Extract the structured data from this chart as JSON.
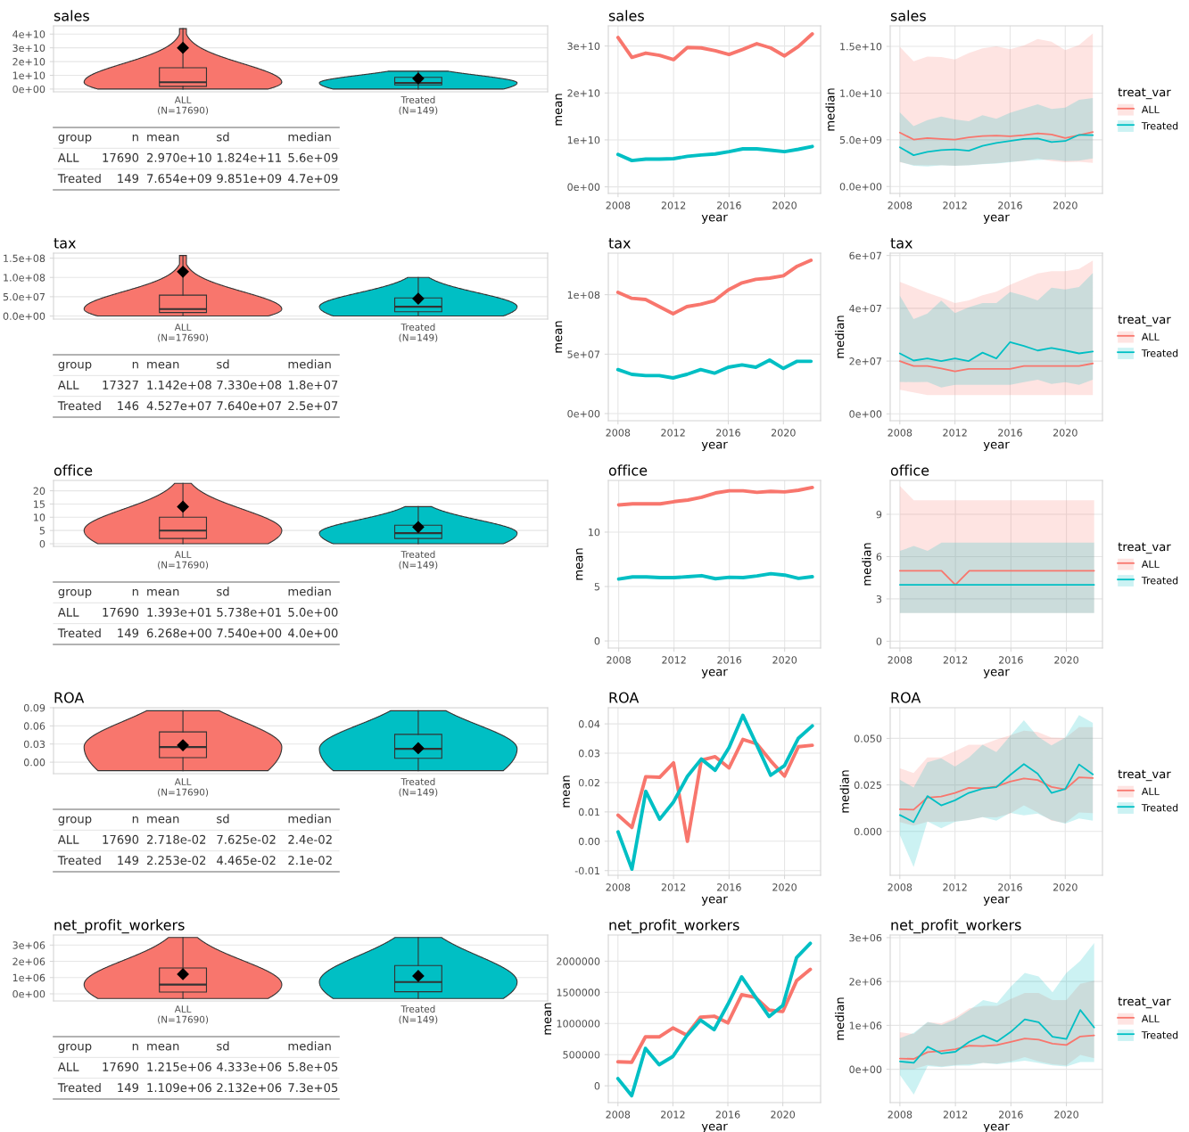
{
  "chart_data": [
    {
      "type": "box",
      "title": "sales",
      "categories": [
        "ALL\n(N=17690)",
        "Treated\n(N=149)"
      ],
      "colors": [
        "#f8766d",
        "#00bfc4"
      ],
      "marker": "diamond",
      "grid": "y",
      "boxes": [
        {
          "low": 0,
          "q1": 2000000000.0,
          "median": 5000000000.0,
          "q3": 15500000000.0,
          "high": 44000000000.0,
          "mean": 30000000000.0
        },
        {
          "low": 0,
          "q1": 3000000000.0,
          "median": 4500000000.0,
          "q3": 8500000000.0,
          "high": 13000000000.0,
          "mean": 7700000000.0
        }
      ],
      "ylim": [
        -2000000000.0,
        46000000000.0
      ],
      "yticks": [
        {
          "value": 0,
          "label": "0e+00"
        },
        {
          "value": 10000000000.0,
          "label": "1e+10"
        },
        {
          "value": 20000000000.0,
          "label": "2e+10"
        },
        {
          "value": 30000000000.0,
          "label": "3e+10"
        },
        {
          "value": 40000000000.0,
          "label": "4e+10"
        }
      ]
    },
    {
      "type": "other",
      "annotations": [
        "group",
        "n",
        "mean",
        "sd",
        "median",
        "ALL",
        "17690",
        "2.970e+10",
        "1.824e+11",
        "5.6e+09",
        "Treated",
        "149",
        "7.654e+09",
        "9.851e+09",
        "4.7e+09"
      ]
    },
    {
      "type": "line",
      "title": "sales",
      "xlabel": "year",
      "ylabel": "mean",
      "grid": true,
      "x": [
        2008,
        2009,
        2010,
        2011,
        2012,
        2013,
        2014,
        2015,
        2016,
        2017,
        2018,
        2019,
        2020,
        2021,
        2022
      ],
      "series": [
        {
          "color": "#f8766d",
          "values": [
            31800000000.0,
            27600000000.0,
            28500000000.0,
            28000000000.0,
            27100000000.0,
            29700000000.0,
            29600000000.0,
            29000000000.0,
            28200000000.0,
            29300000000.0,
            30500000000.0,
            29600000000.0,
            27900000000.0,
            29900000000.0,
            32600000000.0
          ]
        },
        {
          "color": "#00bfc4",
          "values": [
            6900000000.0,
            5600000000.0,
            5900000000.0,
            5900000000.0,
            6000000000.0,
            6500000000.0,
            6800000000.0,
            7000000000.0,
            7500000000.0,
            8100000000.0,
            8100000000.0,
            7800000000.0,
            7500000000.0,
            8000000000.0,
            8600000000.0
          ]
        }
      ],
      "xlim": [
        2007.3,
        2022.6
      ],
      "ylim": [
        -1400000000.0,
        34300000000.0
      ],
      "xticks": [
        2008,
        2012,
        2016,
        2020
      ],
      "yticks": [
        {
          "value": 0,
          "label": "0e+00"
        },
        {
          "value": 10000000000.0,
          "label": "1e+10"
        },
        {
          "value": 20000000000.0,
          "label": "2e+10"
        },
        {
          "value": 30000000000.0,
          "label": "3e+10"
        }
      ]
    },
    {
      "type": "line",
      "title": "sales",
      "xlabel": "year",
      "ylabel": "median",
      "grid": true,
      "legend": "right",
      "legend_title": "treat_var",
      "x": [
        2008,
        2009,
        2010,
        2011,
        2012,
        2013,
        2014,
        2015,
        2016,
        2017,
        2018,
        2019,
        2020,
        2021,
        2022
      ],
      "series": [
        {
          "name": "ALL",
          "color": "#f8766d",
          "values": [
            5770000000.0,
            5030000000.0,
            5180000000.0,
            5100000000.0,
            5030000000.0,
            5260000000.0,
            5410000000.0,
            5450000000.0,
            5380000000.0,
            5490000000.0,
            5690000000.0,
            5570000000.0,
            5180000000.0,
            5490000000.0,
            5840000000.0
          ],
          "lower": [
            2600000000.0,
            2300000000.0,
            2260000000.0,
            2300000000.0,
            2220000000.0,
            2300000000.0,
            2400000000.0,
            2500000000.0,
            2650000000.0,
            2730000000.0,
            3000000000.0,
            2730000000.0,
            2600000000.0,
            2650000000.0,
            2530000000.0
          ],
          "upper": [
            14960000000.0,
            13400000000.0,
            13900000000.0,
            13870000000.0,
            13600000000.0,
            14300000000.0,
            14800000000.0,
            15000000000.0,
            14700000000.0,
            15100000000.0,
            15800000000.0,
            15500000000.0,
            14600000000.0,
            15150000000.0,
            16400000000.0
          ]
        },
        {
          "name": "Treated",
          "color": "#00bfc4",
          "values": [
            4200000000.0,
            3350000000.0,
            3700000000.0,
            3900000000.0,
            3970000000.0,
            3820000000.0,
            4360000000.0,
            4670000000.0,
            4870000000.0,
            5100000000.0,
            5140000000.0,
            4750000000.0,
            4870000000.0,
            5530000000.0,
            5490000000.0
          ],
          "lower": [
            2650000000.0,
            2220000000.0,
            2140000000.0,
            2260000000.0,
            2220000000.0,
            2260000000.0,
            2380000000.0,
            2450000000.0,
            2600000000.0,
            2770000000.0,
            2840000000.0,
            2880000000.0,
            2730000000.0,
            2770000000.0,
            3000000000.0
          ],
          "upper": [
            7950000000.0,
            6470000000.0,
            7100000000.0,
            7480000000.0,
            7170000000.0,
            7000000000.0,
            7630000000.0,
            7250000000.0,
            7900000000.0,
            8340000000.0,
            8800000000.0,
            8300000000.0,
            8450000000.0,
            9270000000.0,
            9470000000.0
          ]
        }
      ],
      "xlim": [
        2007.3,
        2022.7
      ],
      "ylim": [
        -740000000.0,
        17200000000.0
      ],
      "xticks": [
        2008,
        2012,
        2016,
        2020
      ],
      "yticks": [
        {
          "value": 0,
          "label": "0.0e+00"
        },
        {
          "value": 5000000000.0,
          "label": "5.0e+09"
        },
        {
          "value": 10000000000.0,
          "label": "1.0e+10"
        },
        {
          "value": 15000000000.0,
          "label": "1.5e+10"
        }
      ]
    },
    {
      "type": "box",
      "title": "tax",
      "categories": [
        "ALL\n(N=17690)",
        "Treated\n(N=149)"
      ],
      "colors": [
        "#f8766d",
        "#00bfc4"
      ],
      "marker": "diamond",
      "grid": "y",
      "boxes": [
        {
          "low": 0,
          "q1": 9000000.0,
          "median": 18000000.0,
          "q3": 54000000.0,
          "high": 157000000.0,
          "mean": 115000000.0
        },
        {
          "low": 0,
          "q1": 11000000.0,
          "median": 24000000.0,
          "q3": 47000000.0,
          "high": 100000000.0,
          "mean": 45000000.0
        }
      ],
      "ylim": [
        -8000000.0,
        163000000.0
      ],
      "yticks": [
        {
          "value": 0,
          "label": "0.0e+00"
        },
        {
          "value": 50000000.0,
          "label": "5.0e+07"
        },
        {
          "value": 100000000.0,
          "label": "1.0e+08"
        },
        {
          "value": 150000000.0,
          "label": "1.5e+08"
        }
      ]
    },
    {
      "type": "other",
      "annotations": [
        "group",
        "n",
        "mean",
        "sd",
        "median",
        "ALL",
        "17327",
        "1.142e+08",
        "7.330e+08",
        "1.8e+07",
        "Treated",
        "146",
        "4.527e+07",
        "7.640e+07",
        "2.5e+07"
      ]
    },
    {
      "type": "line",
      "title": "tax",
      "xlabel": "year",
      "ylabel": "mean",
      "grid": true,
      "x": [
        2008,
        2009,
        2010,
        2011,
        2012,
        2013,
        2014,
        2015,
        2016,
        2017,
        2018,
        2019,
        2020,
        2021,
        2022
      ],
      "series": [
        {
          "color": "#f8766d",
          "values": [
            102000000.0,
            97000000.0,
            96000000.0,
            90000000.0,
            84000000.0,
            90000000.0,
            92000000.0,
            95000000.0,
            104000000.0,
            110000000.0,
            113000000.0,
            114000000.0,
            116000000.0,
            124000000.0,
            129000000.0
          ]
        },
        {
          "color": "#00bfc4",
          "values": [
            37000000.0,
            33000000.0,
            32000000.0,
            32000000.0,
            30000000.0,
            33000000.0,
            37000000.0,
            34000000.0,
            39000000.0,
            41000000.0,
            39000000.0,
            45000000.0,
            38000000.0,
            44000000.0,
            44000000.0
          ]
        }
      ],
      "xlim": [
        2007.3,
        2022.7
      ],
      "ylim": [
        -6000000.0,
        135000000.0
      ],
      "xticks": [
        2008,
        2012,
        2016,
        2020
      ],
      "yticks": [
        {
          "value": 0,
          "label": "0e+00"
        },
        {
          "value": 50000000.0,
          "label": "5e+07"
        },
        {
          "value": 100000000.0,
          "label": "1e+08"
        }
      ]
    },
    {
      "type": "line",
      "title": "tax",
      "xlabel": "year",
      "ylabel": "median",
      "grid": true,
      "legend": "right",
      "legend_title": "treat_var",
      "x": [
        2008,
        2009,
        2010,
        2011,
        2012,
        2013,
        2014,
        2015,
        2016,
        2017,
        2018,
        2019,
        2020,
        2021,
        2022
      ],
      "series": [
        {
          "name": "ALL",
          "color": "#f8766d",
          "values": [
            20000000.0,
            18100000.0,
            18100000.0,
            17200000.0,
            16100000.0,
            17000000.0,
            17000000.0,
            17000000.0,
            17000000.0,
            18100000.0,
            18100000.0,
            18100000.0,
            18100000.0,
            18100000.0,
            19100000.0
          ],
          "lower": [
            9100000.0,
            8100000.0,
            7100000.0,
            7100000.0,
            7100000.0,
            7100000.0,
            7100000.0,
            7100000.0,
            7100000.0,
            7100000.0,
            7100000.0,
            7100000.0,
            7100000.0,
            7100000.0,
            7100000.0
          ],
          "upper": [
            50000000.0,
            48000000.0,
            45900000.0,
            44100000.0,
            42000000.0,
            43000000.0,
            44900000.0,
            46300000.0,
            48900000.0,
            51100000.0,
            53200000.0,
            54100000.0,
            54100000.0,
            54900000.0,
            58100000.0
          ]
        },
        {
          "name": "Treated",
          "color": "#00bfc4",
          "values": [
            22900000.0,
            20200000.0,
            21000000.0,
            20000000.0,
            21000000.0,
            20000000.0,
            23200000.0,
            21000000.0,
            27200000.0,
            25700000.0,
            24000000.0,
            25000000.0,
            24000000.0,
            22900000.0,
            23600000.0
          ],
          "lower": [
            12100000.0,
            12000000.0,
            12100000.0,
            10000000.0,
            11000000.0,
            11000000.0,
            11000000.0,
            11000000.0,
            11000000.0,
            12000000.0,
            12900000.0,
            11300000.0,
            12000000.0,
            11000000.0,
            12900000.0
          ],
          "upper": [
            44800000.0,
            35900000.0,
            38000000.0,
            42900000.0,
            38200000.0,
            40400000.0,
            42000000.0,
            42000000.0,
            46200000.0,
            44800000.0,
            43000000.0,
            47800000.0,
            47100000.0,
            48100000.0,
            53400000.0
          ]
        }
      ],
      "xlim": [
        2007.3,
        2022.7
      ],
      "ylim": [
        -2600000.0,
        60900000.0
      ],
      "xticks": [
        2008,
        2012,
        2016,
        2020
      ],
      "yticks": [
        {
          "value": 0,
          "label": "0e+00"
        },
        {
          "value": 20000000.0,
          "label": "2e+07"
        },
        {
          "value": 40000000.0,
          "label": "4e+07"
        },
        {
          "value": 60000000.0,
          "label": "6e+07"
        }
      ]
    },
    {
      "type": "box",
      "title": "office",
      "categories": [
        "ALL\n(N=17690)",
        "Treated\n(N=149)"
      ],
      "colors": [
        "#f8766d",
        "#00bfc4"
      ],
      "marker": "diamond",
      "grid": "y",
      "boxes": [
        {
          "low": 0,
          "q1": 2,
          "median": 5,
          "q3": 10,
          "high": 22.8,
          "mean": 14
        },
        {
          "low": 0,
          "q1": 2,
          "median": 4,
          "q3": 7,
          "high": 14,
          "mean": 6.3
        }
      ],
      "ylim": [
        -1,
        23.9
      ],
      "yticks": [
        0,
        5,
        10,
        15,
        20
      ]
    },
    {
      "type": "other",
      "annotations": [
        "group",
        "n",
        "mean",
        "sd",
        "median",
        "ALL",
        "17690",
        "1.393e+01",
        "5.738e+01",
        "5.0e+00",
        "Treated",
        "149",
        "6.268e+00",
        "7.540e+00",
        "4.0e+00"
      ]
    },
    {
      "type": "line",
      "title": "office",
      "xlabel": "year",
      "ylabel": "mean",
      "grid": true,
      "x": [
        2008,
        2009,
        2010,
        2011,
        2012,
        2013,
        2014,
        2015,
        2016,
        2017,
        2018,
        2019,
        2020,
        2021,
        2022
      ],
      "series": [
        {
          "color": "#f8766d",
          "values": [
            12.5,
            12.6,
            12.6,
            12.6,
            12.8,
            12.95,
            13.2,
            13.6,
            13.8,
            13.8,
            13.65,
            13.75,
            13.7,
            13.85,
            14.1
          ]
        },
        {
          "color": "#00bfc4",
          "values": [
            5.69,
            5.88,
            5.88,
            5.82,
            5.82,
            5.9,
            6.0,
            5.72,
            5.85,
            5.82,
            5.98,
            6.18,
            6.05,
            5.75,
            5.9
          ]
        }
      ],
      "xlim": [
        2007.25,
        2022.6
      ],
      "ylim": [
        -0.65,
        14.75
      ],
      "xticks": [
        2008,
        2012,
        2016,
        2020
      ],
      "yticks": [
        0,
        5,
        10
      ]
    },
    {
      "type": "line",
      "title": "office",
      "xlabel": "year",
      "ylabel": "median",
      "grid": true,
      "legend": "right",
      "legend_title": "treat_var",
      "x": [
        2008,
        2009,
        2010,
        2011,
        2012,
        2013,
        2014,
        2015,
        2016,
        2017,
        2018,
        2019,
        2020,
        2021,
        2022
      ],
      "series": [
        {
          "name": "ALL",
          "color": "#f8766d",
          "values": [
            5,
            5,
            5,
            5,
            4,
            5,
            5,
            5,
            5,
            5,
            5,
            5,
            5,
            5,
            5
          ],
          "lower": [
            2,
            2,
            2,
            2,
            2,
            2,
            2,
            2,
            2,
            2,
            2,
            2,
            2,
            2,
            2
          ],
          "upper": [
            11,
            10,
            10,
            10,
            10,
            10,
            10,
            10,
            10,
            10,
            10,
            10,
            10,
            10,
            10
          ]
        },
        {
          "name": "Treated",
          "color": "#00bfc4",
          "values": [
            4,
            4,
            4,
            4,
            4,
            4,
            4,
            4,
            4,
            4,
            4,
            4,
            4,
            4,
            4
          ],
          "lower": [
            2,
            2,
            2,
            2,
            2,
            2,
            2,
            2,
            2,
            2,
            2,
            2,
            2,
            2,
            2
          ],
          "upper": [
            6.4,
            6.75,
            6.4,
            7,
            7,
            7,
            7,
            7,
            7,
            7,
            7,
            7,
            7,
            7,
            7
          ]
        }
      ],
      "xlim": [
        2007.3,
        2022.6
      ],
      "ylim": [
        -0.48,
        11.4
      ],
      "xticks": [
        2008,
        2012,
        2016,
        2020
      ],
      "yticks": [
        0,
        3,
        6,
        9
      ]
    },
    {
      "type": "box",
      "title": "ROA",
      "categories": [
        "ALL\n(N=17690)",
        "Treated\n(N=149)"
      ],
      "colors": [
        "#f8766d",
        "#00bfc4"
      ],
      "marker": "diamond",
      "grid": "y",
      "boxes": [
        {
          "low": -0.014,
          "q1": 0.0076,
          "median": 0.025,
          "q3": 0.05,
          "high": 0.085,
          "mean": 0.028
        },
        {
          "low": -0.014,
          "q1": 0.0065,
          "median": 0.022,
          "q3": 0.046,
          "high": 0.085,
          "mean": 0.023
        }
      ],
      "ylim": [
        -0.019,
        0.09
      ],
      "yticks": [
        {
          "value": 0,
          "label": "0.00"
        },
        {
          "value": 0.03,
          "label": "0.03"
        },
        {
          "value": 0.06,
          "label": "0.06"
        },
        {
          "value": 0.09,
          "label": "0.09"
        }
      ]
    },
    {
      "type": "other",
      "annotations": [
        "group",
        "n",
        "mean",
        "sd",
        "median",
        "ALL",
        "17690",
        "2.718e-02",
        "7.625e-02",
        "2.4e-02",
        "Treated",
        "149",
        "2.253e-02",
        "4.465e-02",
        "2.1e-02"
      ]
    },
    {
      "type": "line",
      "title": "ROA",
      "xlabel": "year",
      "ylabel": "mean",
      "grid": true,
      "x": [
        2008,
        2009,
        2010,
        2011,
        2012,
        2013,
        2014,
        2015,
        2016,
        2017,
        2018,
        2019,
        2020,
        2021,
        2022
      ],
      "series": [
        {
          "color": "#f8766d",
          "values": [
            0.0089,
            0.0047,
            0.022,
            0.0218,
            0.0267,
            0.0,
            0.0276,
            0.0288,
            0.025,
            0.0347,
            0.0332,
            0.0274,
            0.0222,
            0.0322,
            0.0327
          ]
        },
        {
          "color": "#00bfc4",
          "values": [
            0.0032,
            -0.0095,
            0.017,
            0.0075,
            0.0134,
            0.0221,
            0.028,
            0.0242,
            0.0319,
            0.0429,
            0.0328,
            0.0225,
            0.0258,
            0.0351,
            0.0393
          ]
        }
      ],
      "xlim": [
        2007.3,
        2022.6
      ],
      "ylim": [
        -0.0116,
        0.0455
      ],
      "xticks": [
        2008,
        2012,
        2016,
        2020
      ],
      "yticks": [
        {
          "value": -0.01,
          "label": "-0.01"
        },
        {
          "value": 0,
          "label": "0.00"
        },
        {
          "value": 0.01,
          "label": "0.01"
        },
        {
          "value": 0.02,
          "label": "0.02"
        },
        {
          "value": 0.03,
          "label": "0.03"
        },
        {
          "value": 0.04,
          "label": "0.04"
        }
      ]
    },
    {
      "type": "line",
      "title": "ROA",
      "xlabel": "year",
      "ylabel": "median",
      "grid": true,
      "legend": "right",
      "legend_title": "treat_var",
      "x": [
        2008,
        2009,
        2010,
        2011,
        2012,
        2013,
        2014,
        2015,
        2016,
        2017,
        2018,
        2019,
        2020,
        2021,
        2022
      ],
      "series": [
        {
          "name": "ALL",
          "color": "#f8766d",
          "values": [
            0.0119,
            0.0117,
            0.0182,
            0.0188,
            0.0207,
            0.0234,
            0.0232,
            0.0241,
            0.0268,
            0.0285,
            0.0276,
            0.0239,
            0.0226,
            0.0291,
            0.0287
          ],
          "lower": [
            0.005,
            0.0031,
            0.0052,
            0.005,
            0.0054,
            0.0061,
            0.0077,
            0.0075,
            0.0096,
            0.014,
            0.0102,
            0.0057,
            0.0046,
            0.0102,
            0.0098
          ],
          "upper": [
            0.0339,
            0.0314,
            0.0398,
            0.0398,
            0.0431,
            0.0466,
            0.0466,
            0.0494,
            0.0517,
            0.0542,
            0.0534,
            0.0504,
            0.0502,
            0.0561,
            0.0561
          ]
        },
        {
          "name": "Treated",
          "color": "#00bfc4",
          "values": [
            0.0088,
            0.005,
            0.019,
            0.014,
            0.0167,
            0.0207,
            0.023,
            0.0238,
            0.0303,
            0.0362,
            0.031,
            0.0207,
            0.0228,
            0.036,
            0.0307
          ],
          "lower": [
            -0.0019,
            -0.0192,
            0.0054,
            0.0017,
            0.0052,
            0.0061,
            0.0077,
            0.0057,
            0.01,
            0.0086,
            0.0096,
            0.0061,
            0.0042,
            0.0069,
            0.0057
          ],
          "upper": [
            0.0278,
            0.0236,
            0.0372,
            0.0393,
            0.0349,
            0.0397,
            0.0466,
            0.0427,
            0.0513,
            0.0598,
            0.051,
            0.0462,
            0.0504,
            0.0625,
            0.0584
          ]
        }
      ],
      "xlim": [
        2007.3,
        2022.7
      ],
      "ylim": [
        -0.0236,
        0.0665
      ],
      "xticks": [
        2008,
        2012,
        2016,
        2020
      ],
      "yticks": [
        {
          "value": 0,
          "label": "0.000"
        },
        {
          "value": 0.025,
          "label": "0.025"
        },
        {
          "value": 0.05,
          "label": "0.050"
        }
      ]
    },
    {
      "type": "box",
      "title": "net_profit_workers",
      "categories": [
        "ALL\n(N=17690)",
        "Treated\n(N=149)"
      ],
      "colors": [
        "#f8766d",
        "#00bfc4"
      ],
      "marker": "diamond",
      "grid": "y",
      "boxes": [
        {
          "low": -290000,
          "q1": 110000,
          "median": 570000,
          "q3": 1590000,
          "high": 3470000,
          "mean": 1210000
        },
        {
          "low": -290000,
          "q1": 130000,
          "median": 730000,
          "q3": 1740000,
          "high": 3470000,
          "mean": 1100000
        }
      ],
      "ylim": [
        -440000,
        3620000
      ],
      "yticks": [
        {
          "value": 0,
          "label": "0e+00"
        },
        {
          "value": 1000000,
          "label": "1e+06"
        },
        {
          "value": 2000000,
          "label": "2e+06"
        },
        {
          "value": 3000000,
          "label": "3e+06"
        }
      ]
    },
    {
      "type": "other",
      "annotations": [
        "group",
        "n",
        "mean",
        "sd",
        "median",
        "ALL",
        "17690",
        "1.215e+06",
        "4.333e+06",
        "5.8e+05",
        "Treated",
        "149",
        "1.109e+06",
        "2.132e+06",
        "7.3e+05"
      ]
    },
    {
      "type": "line",
      "title": "net_profit_workers",
      "xlabel": "year",
      "ylabel": "mean",
      "grid": true,
      "x": [
        2008,
        2009,
        2010,
        2011,
        2012,
        2013,
        2014,
        2015,
        2016,
        2017,
        2018,
        2019,
        2020,
        2021,
        2022
      ],
      "series": [
        {
          "color": "#f8766d",
          "values": [
            384000,
            378000,
            785000,
            785000,
            928000,
            814000,
            1100000,
            1117000,
            1009000,
            1461000,
            1421000,
            1215000,
            1192000,
            1685000,
            1868000
          ]
        },
        {
          "color": "#00bfc4",
          "values": [
            115000,
            -160000,
            600000,
            338000,
            470000,
            800000,
            1054000,
            900000,
            1307000,
            1748000,
            1427000,
            1112000,
            1289000,
            2057000,
            2287000
          ]
        }
      ],
      "xlim": [
        2007.3,
        2022.75
      ],
      "ylim": [
        -270000,
        2420000
      ],
      "xticks": [
        2008,
        2012,
        2016,
        2020
      ],
      "yticks": [
        0,
        500000,
        1000000,
        1500000,
        2000000
      ]
    },
    {
      "type": "line",
      "title": "net_profit_workers",
      "xlabel": "year",
      "ylabel": "median",
      "grid": true,
      "legend": "right",
      "legend_title": "treat_var",
      "x": [
        2008,
        2009,
        2010,
        2011,
        2012,
        2013,
        2014,
        2015,
        2016,
        2017,
        2018,
        2019,
        2020,
        2021,
        2022
      ],
      "series": [
        {
          "name": "ALL",
          "color": "#f8766d",
          "values": [
            244000,
            236000,
            390000,
            415000,
            455000,
            537000,
            528000,
            553000,
            626000,
            700000,
            675000,
            585000,
            553000,
            748000,
            772000
          ],
          "lower": [
            0,
            0,
            98000,
            65000,
            98000,
            114000,
            146000,
            130000,
            179000,
            276000,
            179000,
            114000,
            89000,
            325000,
            252000
          ],
          "upper": [
            846000,
            805000,
            1073000,
            1049000,
            1179000,
            1390000,
            1447000,
            1447000,
            1600000,
            1740000,
            1740000,
            1577000,
            1577000,
            1950000,
            2020000
          ]
        },
        {
          "name": "Treated",
          "color": "#00bfc4",
          "values": [
            179000,
            146000,
            512000,
            358000,
            398000,
            626000,
            772000,
            634000,
            854000,
            1138000,
            1073000,
            740000,
            691000,
            1350000,
            951000
          ],
          "lower": [
            -130000,
            -577000,
            73000,
            49000,
            81000,
            81000,
            146000,
            114000,
            154000,
            195000,
            146000,
            89000,
            65000,
            163000,
            163000
          ],
          "upper": [
            707000,
            829000,
            1081000,
            1008000,
            1138000,
            1350000,
            1577000,
            1512000,
            1886000,
            2195000,
            2114000,
            1756000,
            2195000,
            2472000,
            2878000
          ]
        }
      ],
      "xlim": [
        2007.3,
        2022.6
      ],
      "ylim": [
        -760000,
        3060000
      ],
      "xticks": [
        2008,
        2012,
        2016,
        2020
      ],
      "yticks": [
        {
          "value": 0,
          "label": "0e+00"
        },
        {
          "value": 1000000,
          "label": "1e+06"
        },
        {
          "value": 2000000,
          "label": "2e+06"
        },
        {
          "value": 3000000,
          "label": "3e+06"
        }
      ]
    }
  ]
}
